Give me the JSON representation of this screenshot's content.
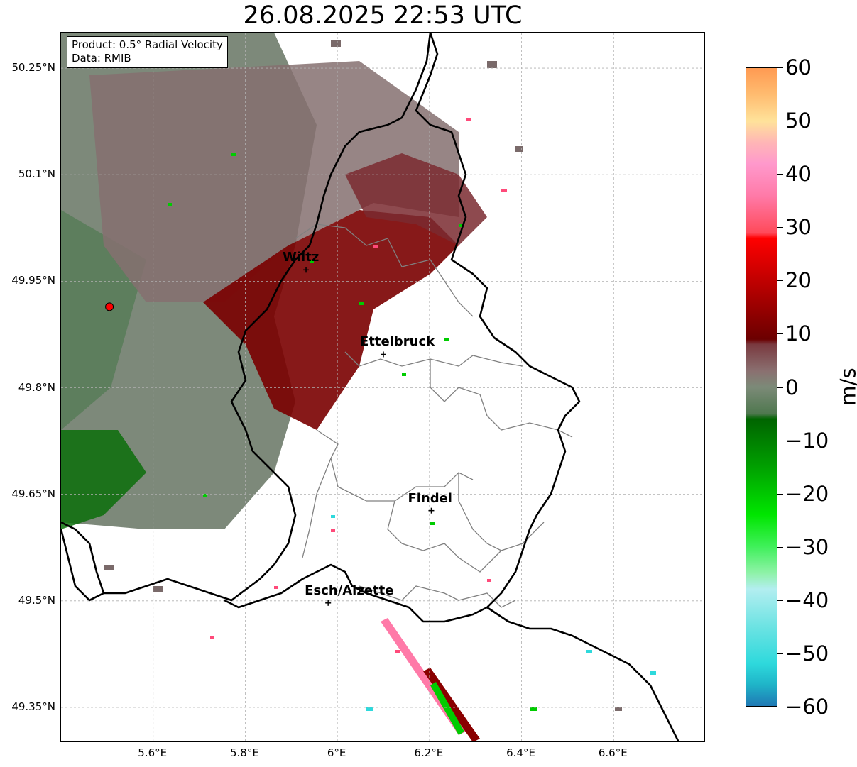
{
  "title": "26.08.2025 22:53 UTC",
  "info_box": {
    "product": "Product: 0.5° Radial Velocity",
    "source": "Data: RMIB"
  },
  "map": {
    "lat_labels": [
      {
        "value": 50.25,
        "text": "50.25°N"
      },
      {
        "value": 50.1,
        "text": "50.1°N"
      },
      {
        "value": 49.95,
        "text": "49.95°N"
      },
      {
        "value": 49.8,
        "text": "49.8°N"
      },
      {
        "value": 49.65,
        "text": "49.65°N"
      },
      {
        "value": 49.5,
        "text": "49.5°N"
      },
      {
        "value": 49.35,
        "text": "49.35°N"
      }
    ],
    "lon_labels": [
      {
        "value": 5.6,
        "text": "5.6°E"
      },
      {
        "value": 5.8,
        "text": "5.8°E"
      },
      {
        "value": 6.0,
        "text": "6°E"
      },
      {
        "value": 6.2,
        "text": "6.2°E"
      },
      {
        "value": 6.4,
        "text": "6.4°E"
      },
      {
        "value": 6.6,
        "text": "6.6°E"
      }
    ],
    "extent": {
      "lon_min": 5.4,
      "lon_max": 6.8,
      "lat_min": 49.3,
      "lat_max": 50.3
    },
    "radar_site": {
      "lon": 5.505,
      "lat": 49.914,
      "color": "#ff0000"
    },
    "cities": [
      {
        "name": "Wiltz",
        "lon": 5.932,
        "lat": 49.966
      },
      {
        "name": "Ettelbruck",
        "lon": 6.1,
        "lat": 49.847
      },
      {
        "name": "Findel",
        "lon": 6.204,
        "lat": 49.627
      },
      {
        "name": "Esch/Alzette",
        "lon": 5.98,
        "lat": 49.497
      }
    ],
    "colors": {
      "border": "#000000",
      "canton_lines": "#808080",
      "gridlines": "#b0b0b0",
      "inbound_green": "#5a7d5a",
      "outbound_dark_red": "#7a0000",
      "near_zero_gray": "#857070"
    }
  },
  "colorbar": {
    "unit": "m/s",
    "min": -60,
    "max": 60,
    "ticks": [
      {
        "value": 60,
        "text": "60"
      },
      {
        "value": 50,
        "text": "50"
      },
      {
        "value": 40,
        "text": "40"
      },
      {
        "value": 30,
        "text": "30"
      },
      {
        "value": 20,
        "text": "20"
      },
      {
        "value": 10,
        "text": "10"
      },
      {
        "value": 0,
        "text": "0"
      },
      {
        "value": -10,
        "text": "−10"
      },
      {
        "value": -20,
        "text": "−20"
      },
      {
        "value": -30,
        "text": "−30"
      },
      {
        "value": -40,
        "text": "−40"
      },
      {
        "value": -50,
        "text": "−50"
      },
      {
        "value": -60,
        "text": "−60"
      }
    ],
    "color_stops": [
      {
        "value": -60,
        "color": "#1f78b4"
      },
      {
        "value": -56,
        "color": "#1fb4c8"
      },
      {
        "value": -52,
        "color": "#2ed9dc"
      },
      {
        "value": -45,
        "color": "#6de3e3"
      },
      {
        "value": -38,
        "color": "#b3eef0"
      },
      {
        "value": -35,
        "color": "#8ff2a8"
      },
      {
        "value": -30,
        "color": "#3ff05a"
      },
      {
        "value": -24,
        "color": "#00e600"
      },
      {
        "value": -15,
        "color": "#00a000"
      },
      {
        "value": -6,
        "color": "#006400"
      },
      {
        "value": -5,
        "color": "#4f784f"
      },
      {
        "value": 0,
        "color": "#7c8a78"
      },
      {
        "value": 3,
        "color": "#8a7070"
      },
      {
        "value": 8,
        "color": "#7a3a40"
      },
      {
        "value": 9,
        "color": "#6b0000"
      },
      {
        "value": 20,
        "color": "#c00000"
      },
      {
        "value": 28,
        "color": "#ff0000"
      },
      {
        "value": 29,
        "color": "#ff4a5a"
      },
      {
        "value": 36,
        "color": "#ff7aa8"
      },
      {
        "value": 42,
        "color": "#ff99cc"
      },
      {
        "value": 46,
        "color": "#ffb6b6"
      },
      {
        "value": 50,
        "color": "#ffe29a"
      },
      {
        "value": 55,
        "color": "#ffbc70"
      },
      {
        "value": 60,
        "color": "#ff9a52"
      }
    ]
  }
}
